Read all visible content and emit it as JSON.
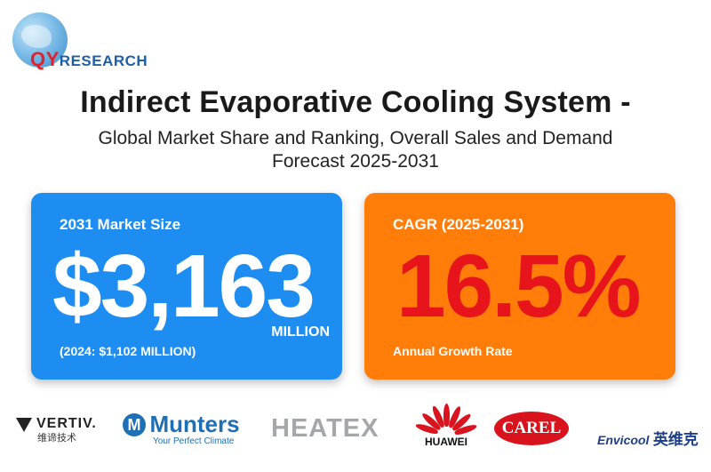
{
  "brand": {
    "q": "QY",
    "rest": "RESEARCH"
  },
  "title": "Indirect Evaporative Cooling System -",
  "subtitle": "Global Market Share and Ranking, Overall Sales and Demand Forecast 2025-2031",
  "cards": {
    "market_size": {
      "label": "2031 Market Size",
      "value": "$3,163",
      "unit": "MILLION",
      "note": "(2024: $1,102 MILLION)",
      "color": "#1e8df2"
    },
    "cagr": {
      "label": "CAGR (2025-2031)",
      "value": "16.5%",
      "note": "Annual Growth Rate",
      "color": "#ff7d08",
      "value_color": "#e8141c"
    }
  },
  "companies": {
    "vertiv": {
      "name": "VERTIV.",
      "cn": "维谛技术"
    },
    "munters": {
      "mark": "M",
      "name": "Munters",
      "tagline": "Your Perfect Climate"
    },
    "heatex": {
      "name": "HEATEX"
    },
    "huawei": {
      "name": "HUAWEI"
    },
    "carel": {
      "name": "CAREL"
    },
    "envicool": {
      "name": "Envicool",
      "cn": "英维克"
    }
  }
}
